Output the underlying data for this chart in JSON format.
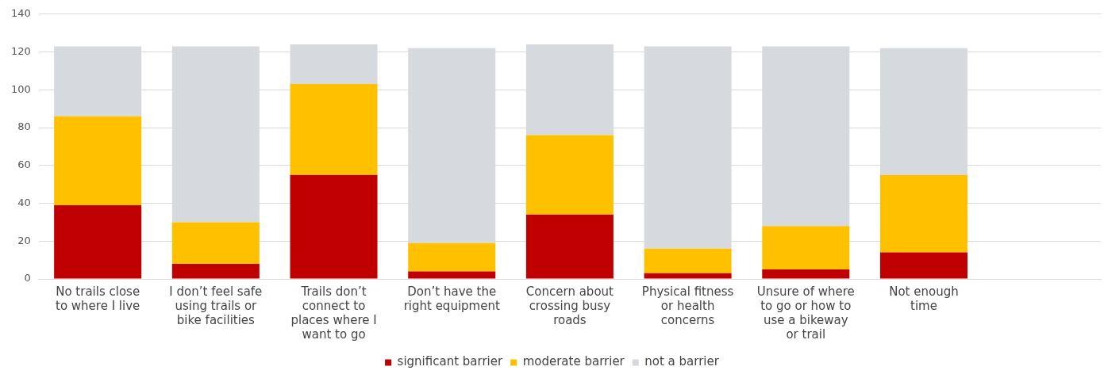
{
  "chart_data": {
    "type": "bar",
    "stacked": true,
    "categories": [
      [
        "No trails close",
        "to where I live"
      ],
      [
        "I don’t feel safe",
        "using trails or",
        "bike facilities"
      ],
      [
        "Trails don’t",
        "connect to",
        "places where I",
        "want to go"
      ],
      [
        "Don’t have the",
        "right equipment"
      ],
      [
        "Concern about",
        "crossing busy",
        "roads"
      ],
      [
        "Physical fitness",
        "or health",
        "concerns"
      ],
      [
        "Unsure of where",
        "to go or how to",
        "use a bikeway",
        "or trail"
      ],
      [
        "Not enough",
        "time"
      ],
      null
    ],
    "series": [
      {
        "name": "significant barrier",
        "color": "#c00000",
        "values": [
          39,
          8,
          55,
          4,
          34,
          3,
          5,
          14,
          null
        ]
      },
      {
        "name": "moderate barrier",
        "color": "#ffc000",
        "values": [
          47,
          22,
          48,
          15,
          42,
          13,
          23,
          41,
          null
        ]
      },
      {
        "name": "not a barrier",
        "color": "#d6d9de",
        "values": [
          37,
          93,
          21,
          103,
          48,
          107,
          95,
          67,
          null
        ]
      }
    ],
    "ylim": [
      0,
      140
    ],
    "yticks": [
      0,
      20,
      40,
      60,
      80,
      100,
      120,
      140
    ],
    "grid": "y",
    "legend": "bottom"
  }
}
